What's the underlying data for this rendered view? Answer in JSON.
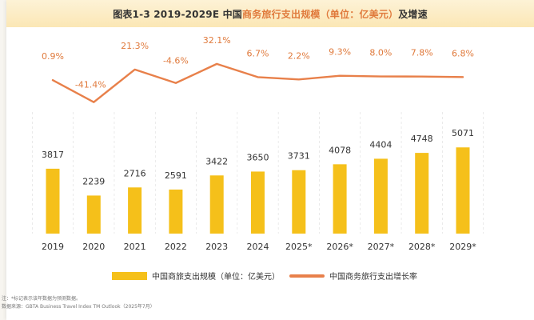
{
  "header": {
    "title_prefix": "图表1-3 2019-2029E 中国",
    "title_accent": "商务旅行支出规模（单位：亿美元）",
    "title_suffix": "及增速"
  },
  "colors": {
    "bar": "#f5c01a",
    "line": "#e8804a",
    "growth_label": "#e07a3c",
    "value_label": "#333333",
    "grid": "#dddddd"
  },
  "chart_data": {
    "type": "bar",
    "title": "图表1-3 2019-2029E 中国商务旅行支出规模（单位：亿美元）及增速",
    "categories": [
      "2019",
      "2020",
      "2021",
      "2022",
      "2023",
      "2024",
      "2025*",
      "2026*",
      "2027*",
      "2028*",
      "2029*"
    ],
    "series": [
      {
        "name": "中国商旅支出规模（单位：亿美元）",
        "type": "bar",
        "values": [
          3817,
          2239,
          2716,
          2591,
          3422,
          3650,
          3731,
          4078,
          4404,
          4748,
          5071
        ]
      },
      {
        "name": "中国商务旅行支出增长率",
        "type": "line",
        "values": [
          0.9,
          -41.4,
          21.3,
          -4.6,
          32.1,
          6.7,
          2.2,
          9.3,
          8.0,
          7.8,
          6.8
        ],
        "labels": [
          "0.9%",
          "-41.4%",
          "21.3%",
          "-4.6%",
          "32.1%",
          "6.7%",
          "2.2%",
          "9.3%",
          "8.0%",
          "7.8%",
          "6.8%"
        ]
      }
    ],
    "xlabel": "",
    "ylabel": "",
    "ylim": [
      0,
      8000
    ],
    "y2lim": [
      -45,
      35
    ],
    "grid": true,
    "legend": "bottom"
  },
  "legend": {
    "bar_label": "中国商旅支出规模（单位：亿美元）",
    "line_label": "中国商务旅行支出增长率"
  },
  "notes": {
    "note": "注：*标记表示该年数据为预测数据。",
    "source": "数据来源：GBTA Business Travel Index TM Outlook（2025年7月）"
  }
}
